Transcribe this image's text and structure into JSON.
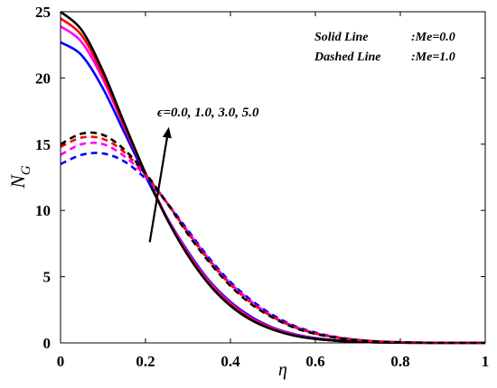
{
  "chart_data": {
    "type": "line",
    "xlabel": "η",
    "ylabel": "N",
    "ylabel_sub": "G",
    "xlim": [
      0,
      1
    ],
    "ylim": [
      0,
      25
    ],
    "xticks": [
      "0",
      "0.2",
      "0.4",
      "0.6",
      "0.8",
      "1"
    ],
    "yticks": [
      "0",
      "5",
      "10",
      "15",
      "20",
      "25"
    ],
    "grid": false,
    "legend": [
      {
        "label": "Solid Line",
        "value": ":Me=0.0"
      },
      {
        "label": "Dashed Line",
        "value": ":Me=1.0"
      }
    ],
    "annotation": "ϵ=0.0, 1.0, 3.0, 5.0",
    "x": [
      0,
      0.05,
      0.1,
      0.15,
      0.2,
      0.25,
      0.3,
      0.35,
      0.4,
      0.45,
      0.5,
      0.55,
      0.6,
      0.65,
      0.7,
      0.75,
      0.8,
      0.85,
      0.9,
      0.95,
      1.0
    ],
    "series": [
      {
        "style": "solid",
        "color": "#000000",
        "values": [
          25.0,
          23.6,
          20.5,
          16.6,
          12.8,
          9.4,
          6.6,
          4.4,
          2.8,
          1.7,
          1.0,
          0.55,
          0.3,
          0.16,
          0.08,
          0.04,
          0.02,
          0.01,
          0.0,
          0.0,
          0.0
        ]
      },
      {
        "style": "solid",
        "color": "#ff0000",
        "values": [
          24.5,
          23.2,
          20.2,
          16.4,
          12.8,
          9.4,
          6.7,
          4.5,
          2.9,
          1.8,
          1.05,
          0.58,
          0.31,
          0.16,
          0.08,
          0.04,
          0.02,
          0.01,
          0.0,
          0.0,
          0.0
        ]
      },
      {
        "style": "solid",
        "color": "#ff00ff",
        "values": [
          23.9,
          22.7,
          19.9,
          16.3,
          12.8,
          9.5,
          6.8,
          4.6,
          3.0,
          1.85,
          1.1,
          0.62,
          0.33,
          0.17,
          0.09,
          0.04,
          0.02,
          0.01,
          0.0,
          0.0,
          0.0
        ]
      },
      {
        "style": "solid",
        "color": "#0000ff",
        "values": [
          22.7,
          21.7,
          19.2,
          15.9,
          12.6,
          9.5,
          6.9,
          4.7,
          3.1,
          1.95,
          1.15,
          0.66,
          0.36,
          0.19,
          0.1,
          0.05,
          0.02,
          0.01,
          0.0,
          0.0,
          0.0
        ]
      },
      {
        "style": "dashed",
        "color": "#000000",
        "values": [
          15.0,
          15.8,
          15.7,
          14.6,
          12.8,
          10.6,
          8.2,
          6.1,
          4.3,
          2.9,
          1.9,
          1.15,
          0.68,
          0.38,
          0.2,
          0.1,
          0.05,
          0.02,
          0.01,
          0.0,
          0.0
        ]
      },
      {
        "style": "dashed",
        "color": "#ff0000",
        "values": [
          14.8,
          15.5,
          15.4,
          14.4,
          12.7,
          10.6,
          8.3,
          6.2,
          4.4,
          3.0,
          1.95,
          1.2,
          0.7,
          0.4,
          0.21,
          0.1,
          0.05,
          0.02,
          0.01,
          0.0,
          0.0
        ]
      },
      {
        "style": "dashed",
        "color": "#ff00ff",
        "values": [
          14.2,
          15.0,
          15.0,
          14.1,
          12.6,
          10.6,
          8.4,
          6.3,
          4.5,
          3.1,
          2.0,
          1.25,
          0.74,
          0.42,
          0.22,
          0.11,
          0.05,
          0.02,
          0.01,
          0.0,
          0.0
        ]
      },
      {
        "style": "dashed",
        "color": "#0000ff",
        "values": [
          13.5,
          14.2,
          14.3,
          13.7,
          12.4,
          10.6,
          8.5,
          6.4,
          4.6,
          3.2,
          2.1,
          1.3,
          0.78,
          0.44,
          0.23,
          0.11,
          0.05,
          0.02,
          0.01,
          0.0,
          0.0
        ]
      }
    ],
    "arrow": {
      "from": [
        0.21,
        7.6
      ],
      "to": [
        0.255,
        16.3
      ]
    }
  }
}
